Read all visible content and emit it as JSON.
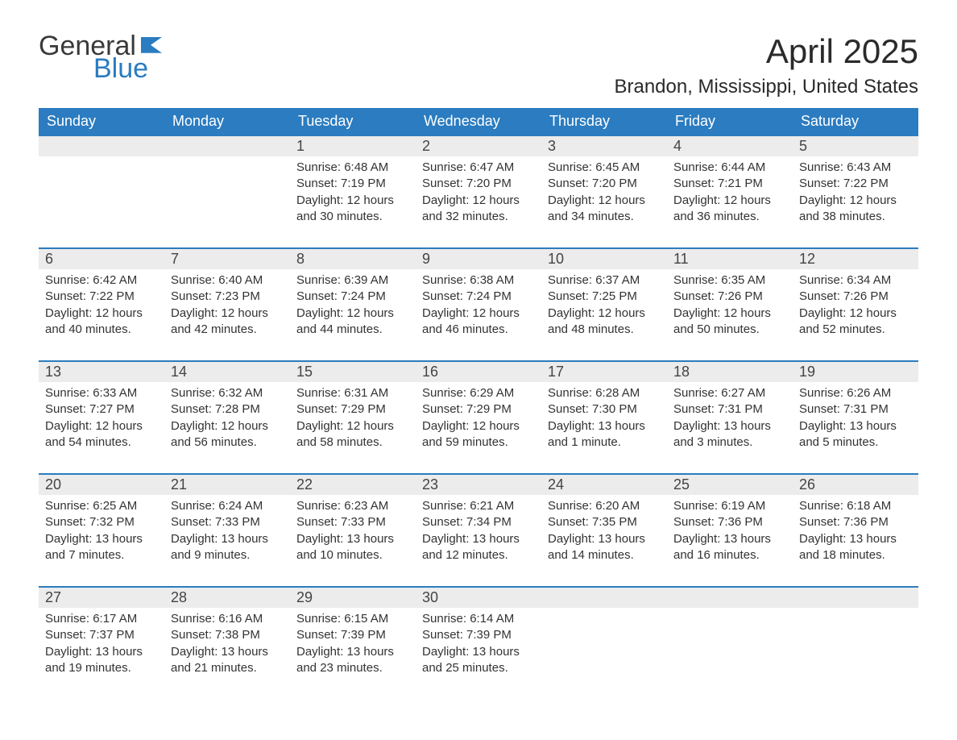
{
  "logo": {
    "general": "General",
    "blue": "Blue"
  },
  "title": "April 2025",
  "subtitle": "Brandon, Mississippi, United States",
  "colors": {
    "header_bg": "#2b7cc0",
    "header_text": "#ffffff",
    "daynum_bg": "#ececec",
    "border": "#2b7cc0",
    "text": "#333333",
    "logo_blue": "#2b7cc0",
    "logo_dark": "#3a3a3a",
    "page_bg": "#ffffff"
  },
  "day_headers": [
    "Sunday",
    "Monday",
    "Tuesday",
    "Wednesday",
    "Thursday",
    "Friday",
    "Saturday"
  ],
  "weeks": [
    [
      null,
      null,
      {
        "n": "1",
        "sr": "6:48 AM",
        "ss": "7:19 PM",
        "dl": "12 hours and 30 minutes."
      },
      {
        "n": "2",
        "sr": "6:47 AM",
        "ss": "7:20 PM",
        "dl": "12 hours and 32 minutes."
      },
      {
        "n": "3",
        "sr": "6:45 AM",
        "ss": "7:20 PM",
        "dl": "12 hours and 34 minutes."
      },
      {
        "n": "4",
        "sr": "6:44 AM",
        "ss": "7:21 PM",
        "dl": "12 hours and 36 minutes."
      },
      {
        "n": "5",
        "sr": "6:43 AM",
        "ss": "7:22 PM",
        "dl": "12 hours and 38 minutes."
      }
    ],
    [
      {
        "n": "6",
        "sr": "6:42 AM",
        "ss": "7:22 PM",
        "dl": "12 hours and 40 minutes."
      },
      {
        "n": "7",
        "sr": "6:40 AM",
        "ss": "7:23 PM",
        "dl": "12 hours and 42 minutes."
      },
      {
        "n": "8",
        "sr": "6:39 AM",
        "ss": "7:24 PM",
        "dl": "12 hours and 44 minutes."
      },
      {
        "n": "9",
        "sr": "6:38 AM",
        "ss": "7:24 PM",
        "dl": "12 hours and 46 minutes."
      },
      {
        "n": "10",
        "sr": "6:37 AM",
        "ss": "7:25 PM",
        "dl": "12 hours and 48 minutes."
      },
      {
        "n": "11",
        "sr": "6:35 AM",
        "ss": "7:26 PM",
        "dl": "12 hours and 50 minutes."
      },
      {
        "n": "12",
        "sr": "6:34 AM",
        "ss": "7:26 PM",
        "dl": "12 hours and 52 minutes."
      }
    ],
    [
      {
        "n": "13",
        "sr": "6:33 AM",
        "ss": "7:27 PM",
        "dl": "12 hours and 54 minutes."
      },
      {
        "n": "14",
        "sr": "6:32 AM",
        "ss": "7:28 PM",
        "dl": "12 hours and 56 minutes."
      },
      {
        "n": "15",
        "sr": "6:31 AM",
        "ss": "7:29 PM",
        "dl": "12 hours and 58 minutes."
      },
      {
        "n": "16",
        "sr": "6:29 AM",
        "ss": "7:29 PM",
        "dl": "12 hours and 59 minutes."
      },
      {
        "n": "17",
        "sr": "6:28 AM",
        "ss": "7:30 PM",
        "dl": "13 hours and 1 minute."
      },
      {
        "n": "18",
        "sr": "6:27 AM",
        "ss": "7:31 PM",
        "dl": "13 hours and 3 minutes."
      },
      {
        "n": "19",
        "sr": "6:26 AM",
        "ss": "7:31 PM",
        "dl": "13 hours and 5 minutes."
      }
    ],
    [
      {
        "n": "20",
        "sr": "6:25 AM",
        "ss": "7:32 PM",
        "dl": "13 hours and 7 minutes."
      },
      {
        "n": "21",
        "sr": "6:24 AM",
        "ss": "7:33 PM",
        "dl": "13 hours and 9 minutes."
      },
      {
        "n": "22",
        "sr": "6:23 AM",
        "ss": "7:33 PM",
        "dl": "13 hours and 10 minutes."
      },
      {
        "n": "23",
        "sr": "6:21 AM",
        "ss": "7:34 PM",
        "dl": "13 hours and 12 minutes."
      },
      {
        "n": "24",
        "sr": "6:20 AM",
        "ss": "7:35 PM",
        "dl": "13 hours and 14 minutes."
      },
      {
        "n": "25",
        "sr": "6:19 AM",
        "ss": "7:36 PM",
        "dl": "13 hours and 16 minutes."
      },
      {
        "n": "26",
        "sr": "6:18 AM",
        "ss": "7:36 PM",
        "dl": "13 hours and 18 minutes."
      }
    ],
    [
      {
        "n": "27",
        "sr": "6:17 AM",
        "ss": "7:37 PM",
        "dl": "13 hours and 19 minutes."
      },
      {
        "n": "28",
        "sr": "6:16 AM",
        "ss": "7:38 PM",
        "dl": "13 hours and 21 minutes."
      },
      {
        "n": "29",
        "sr": "6:15 AM",
        "ss": "7:39 PM",
        "dl": "13 hours and 23 minutes."
      },
      {
        "n": "30",
        "sr": "6:14 AM",
        "ss": "7:39 PM",
        "dl": "13 hours and 25 minutes."
      },
      null,
      null,
      null
    ]
  ],
  "labels": {
    "sunrise": "Sunrise: ",
    "sunset": "Sunset: ",
    "daylight": "Daylight: "
  }
}
